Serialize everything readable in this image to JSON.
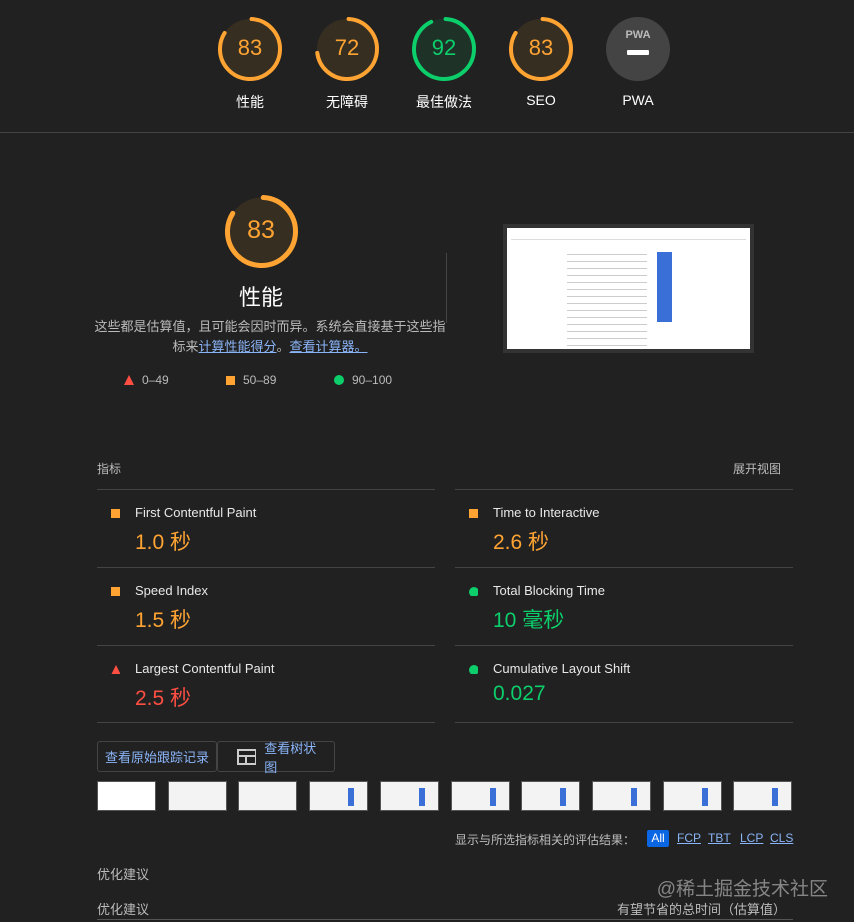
{
  "colors": {
    "pass": "#0cce6b",
    "average": "#ffa433",
    "fail": "#ff4e42",
    "bg": "#212121"
  },
  "categories": [
    {
      "score": "83",
      "label": "性能",
      "value": 83,
      "status": "average"
    },
    {
      "score": "72",
      "label": "无障碍",
      "value": 72,
      "status": "average"
    },
    {
      "score": "92",
      "label": "最佳做法",
      "value": 92,
      "status": "pass"
    },
    {
      "score": "83",
      "label": "SEO",
      "value": 83,
      "status": "average"
    },
    {
      "score": "",
      "label": "PWA",
      "badge": "PWA",
      "status": "na"
    }
  ],
  "performance": {
    "score": "83",
    "value": 83,
    "title": "性能",
    "desc_pre": "这些都是估算值，且可能会因时而异。系统会直接基于这些指标来",
    "desc_link1": "计算性能得分",
    "desc_mid": "。",
    "desc_link2": "查看计算器。",
    "legend": [
      {
        "icon": "triangle",
        "range": "0–49"
      },
      {
        "icon": "square",
        "range": "50–89"
      },
      {
        "icon": "circle",
        "range": "90–100"
      }
    ]
  },
  "metrics": {
    "header": "指标",
    "expand": "展开视图",
    "items": [
      {
        "name": "First Contentful Paint",
        "value": "1.0 秒",
        "status": "average"
      },
      {
        "name": "Time to Interactive",
        "value": "2.6 秒",
        "status": "average"
      },
      {
        "name": "Speed Index",
        "value": "1.5 秒",
        "status": "average"
      },
      {
        "name": "Total Blocking Time",
        "value": "10 毫秒",
        "status": "pass"
      },
      {
        "name": "Largest Contentful Paint",
        "value": "2.5 秒",
        "status": "fail"
      },
      {
        "name": "Cumulative Layout Shift",
        "value": "0.027",
        "status": "pass"
      }
    ]
  },
  "buttons": {
    "trace": "查看原始跟踪记录",
    "treemap": "查看树状图"
  },
  "filter": {
    "label": "显示与所选指标相关的评估结果：",
    "options": [
      "All",
      "FCP",
      "TBT",
      "LCP",
      "CLS"
    ],
    "selected": "All"
  },
  "opportunities": {
    "title1": "优化建议",
    "title2": "优化建议",
    "savings": "有望节省的总时间（估算值）"
  },
  "watermark": "@稀土掘金技术社区"
}
